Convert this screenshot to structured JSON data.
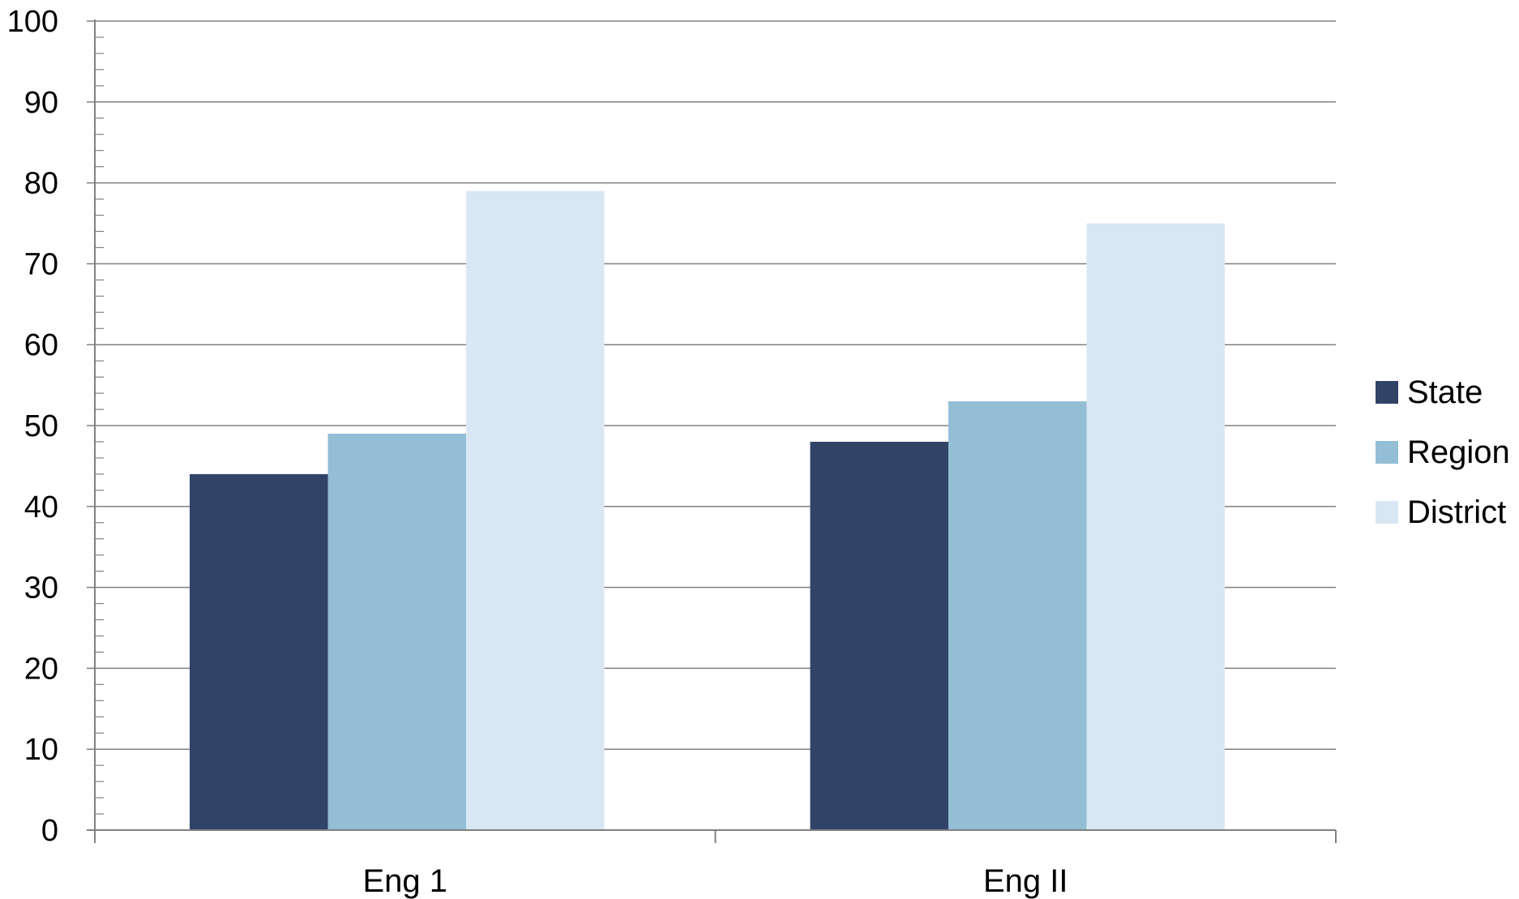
{
  "chart_data": {
    "type": "bar",
    "title": "",
    "xlabel": "",
    "ylabel": "",
    "categories": [
      "Eng 1",
      "Eng II"
    ],
    "series": [
      {
        "name": "State",
        "values": [
          44,
          48
        ],
        "color": "#314366"
      },
      {
        "name": "Region",
        "values": [
          49,
          53
        ],
        "color": "#93BED5"
      },
      {
        "name": "District",
        "values": [
          79,
          75
        ],
        "color": "#D9E7F4"
      }
    ],
    "ylim": [
      0,
      100
    ],
    "yticks": [
      "0",
      "10",
      "20",
      "30",
      "40",
      "50",
      "60",
      "70",
      "80",
      "90",
      "100"
    ],
    "grid": true,
    "gridline_color": "#808080",
    "axis_color": "#808080",
    "legend_position": "right"
  }
}
